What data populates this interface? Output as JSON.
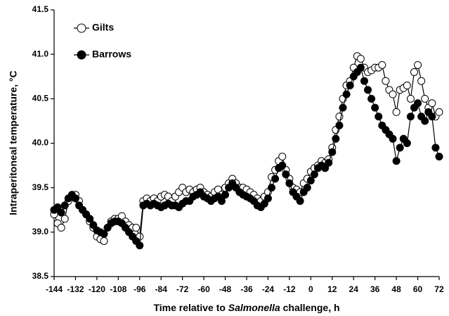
{
  "chart_data": {
    "type": "line",
    "xlabel": [
      "Time relative to ",
      "Salmonella",
      " challenge, h"
    ],
    "ylabel": "Intraperitoneal temperature, °C",
    "x": [
      -144,
      -142,
      -140,
      -138,
      -136,
      -134,
      -132,
      -130,
      -128,
      -126,
      -124,
      -122,
      -120,
      -118,
      -116,
      -114,
      -112,
      -110,
      -108,
      -106,
      -104,
      -102,
      -100,
      -98,
      -96,
      -94,
      -92,
      -90,
      -88,
      -86,
      -84,
      -82,
      -80,
      -78,
      -76,
      -74,
      -72,
      -70,
      -68,
      -66,
      -64,
      -62,
      -60,
      -58,
      -56,
      -54,
      -52,
      -50,
      -48,
      -46,
      -44,
      -42,
      -40,
      -38,
      -36,
      -34,
      -32,
      -30,
      -28,
      -26,
      -24,
      -22,
      -20,
      -18,
      -16,
      -14,
      -12,
      -10,
      -8,
      -6,
      -4,
      -2,
      0,
      2,
      4,
      6,
      8,
      10,
      12,
      14,
      16,
      18,
      20,
      22,
      24,
      26,
      28,
      30,
      32,
      34,
      36,
      38,
      40,
      42,
      44,
      46,
      48,
      50,
      52,
      54,
      56,
      58,
      60,
      62,
      64,
      66,
      68,
      70,
      72
    ],
    "series": [
      {
        "name": "Gilts",
        "color": "#000000",
        "filled": false,
        "values": [
          39.2,
          39.1,
          39.05,
          39.15,
          39.35,
          39.4,
          39.42,
          39.35,
          39.25,
          39.2,
          39.12,
          39.05,
          38.95,
          38.92,
          38.9,
          39.05,
          39.12,
          39.15,
          39.15,
          39.18,
          39.12,
          39.08,
          39.05,
          39.05,
          38.95,
          39.35,
          39.38,
          39.35,
          39.38,
          39.35,
          39.4,
          39.42,
          39.4,
          39.35,
          39.4,
          39.45,
          39.5,
          39.45,
          39.48,
          39.45,
          39.48,
          39.5,
          39.45,
          39.42,
          39.4,
          39.45,
          39.48,
          39.42,
          39.5,
          39.55,
          39.6,
          39.55,
          39.5,
          39.5,
          39.48,
          39.45,
          39.42,
          39.38,
          39.35,
          39.4,
          39.45,
          39.62,
          39.7,
          39.8,
          39.85,
          39.7,
          39.6,
          39.5,
          39.48,
          39.45,
          39.55,
          39.6,
          39.68,
          39.72,
          39.75,
          39.8,
          39.78,
          39.82,
          39.95,
          40.15,
          40.3,
          40.5,
          40.65,
          40.7,
          40.85,
          40.98,
          40.95,
          40.85,
          40.8,
          40.82,
          40.85,
          40.85,
          40.88,
          40.7,
          40.6,
          40.55,
          40.35,
          40.6,
          40.62,
          40.65,
          40.5,
          40.8,
          40.88,
          40.7,
          40.5,
          40.4,
          40.45,
          40.3,
          40.35
        ]
      },
      {
        "name": "Barrows",
        "color": "#000000",
        "filled": true,
        "values": [
          39.25,
          39.28,
          39.22,
          39.3,
          39.38,
          39.42,
          39.38,
          39.3,
          39.25,
          39.2,
          39.15,
          39.08,
          39.02,
          39.0,
          38.98,
          39.05,
          39.1,
          39.12,
          39.12,
          39.1,
          39.05,
          39.0,
          38.95,
          38.9,
          38.85,
          39.3,
          39.32,
          39.3,
          39.32,
          39.3,
          39.28,
          39.3,
          39.32,
          39.3,
          39.3,
          39.28,
          39.32,
          39.35,
          39.35,
          39.4,
          39.42,
          39.45,
          39.4,
          39.38,
          39.35,
          39.38,
          39.4,
          39.35,
          39.42,
          39.5,
          39.55,
          39.5,
          39.45,
          39.42,
          39.4,
          39.38,
          39.35,
          39.3,
          39.28,
          39.32,
          39.38,
          39.5,
          39.6,
          39.72,
          39.75,
          39.65,
          39.55,
          39.45,
          39.4,
          39.35,
          39.45,
          39.5,
          39.58,
          39.65,
          39.72,
          39.75,
          39.72,
          39.78,
          39.9,
          40.05,
          40.2,
          40.4,
          40.55,
          40.65,
          40.75,
          40.8,
          40.85,
          40.7,
          40.6,
          40.5,
          40.4,
          40.3,
          40.2,
          40.15,
          40.1,
          40.05,
          39.8,
          39.95,
          40.05,
          40.0,
          40.3,
          40.4,
          40.45,
          40.3,
          40.25,
          40.35,
          40.3,
          39.95,
          39.85
        ]
      }
    ],
    "xlim": [
      -144,
      72
    ],
    "xticks": [
      -144,
      -132,
      -120,
      -108,
      -96,
      -84,
      -72,
      -60,
      -48,
      -36,
      -24,
      -12,
      0,
      12,
      24,
      36,
      48,
      60,
      72
    ],
    "ylim": [
      38.5,
      41.5
    ],
    "yticks": [
      38.5,
      {
        "value": 39,
        "label": "39.0"
      },
      39.5,
      {
        "value": 40,
        "label": "40.0"
      },
      40.5,
      {
        "value": 41,
        "label": "41.0"
      },
      41.5
    ],
    "legend": "upper left"
  }
}
